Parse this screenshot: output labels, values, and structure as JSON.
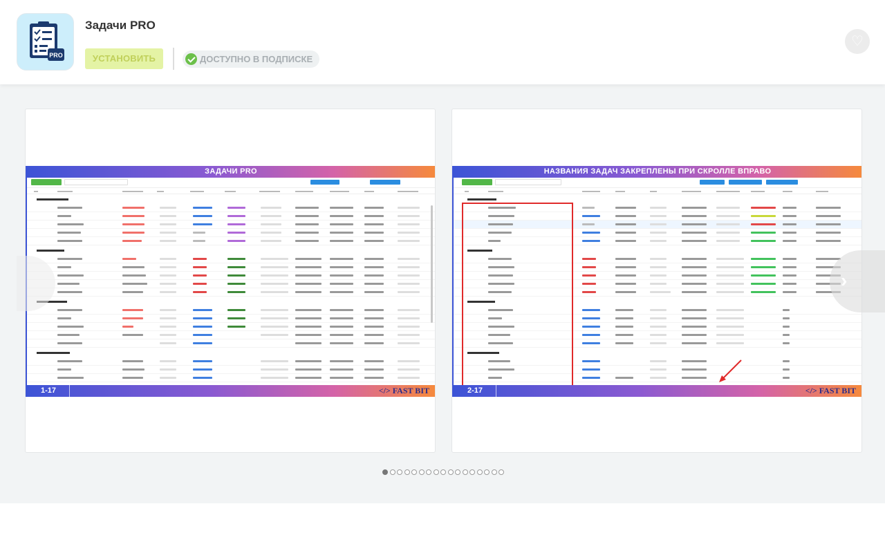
{
  "header": {
    "title": "Задачи PRO",
    "install_label": "УСТАНОВИТЬ",
    "subscription_label": "ДОСТУПНО В ПОДПИСКЕ",
    "icon_text": "PRO"
  },
  "gallery": {
    "slides": [
      {
        "title": "ЗАДАЧИ PRO",
        "page": "1-17",
        "brand": "</> FAST BIT"
      },
      {
        "title": "НАЗВАНИЯ ЗАДАЧ ЗАКРЕПЛЕНЫ ПРИ СКРОЛЛЕ ВПРАВО",
        "page": "2-17",
        "brand": "</> FAST BIT"
      }
    ],
    "dots_total": 17,
    "dots_active": 1
  },
  "colors": {
    "install_bg": "#e4f3a5",
    "install_text": "#c0d05a",
    "check": "#6cc04a",
    "accent_blue": "#2b8de0"
  }
}
